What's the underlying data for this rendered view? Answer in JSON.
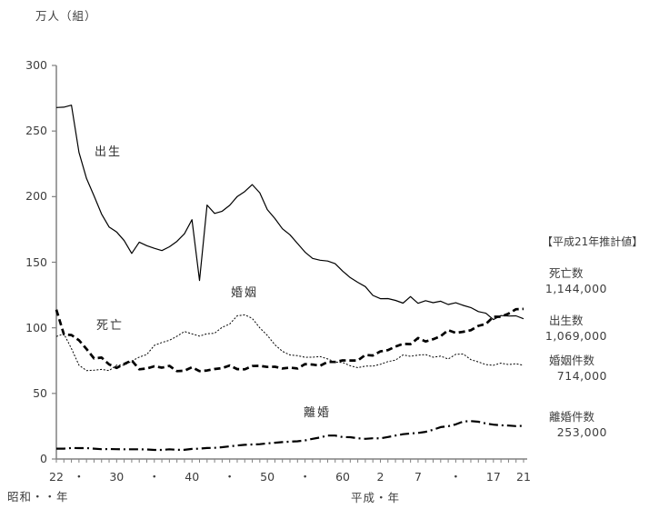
{
  "colors": {
    "background": "#ffffff",
    "line": "#000000",
    "axis": "#808080",
    "text": "#3d3d3d"
  },
  "estimates_panel": {
    "heading": "【平成21年推計値】",
    "items": [
      {
        "label": "死亡数",
        "value": "1,144,000"
      },
      {
        "label": "出生数",
        "value": "1,069,000"
      },
      {
        "label": "婚姻件数",
        "value": "714,000"
      },
      {
        "label": "離婚件数",
        "value": "253,000"
      }
    ]
  },
  "chart_data": {
    "type": "line",
    "title": "",
    "ylabel": "万人（組）",
    "ylim": [
      0,
      300
    ],
    "grid": false,
    "y_ticks": [
      0,
      50,
      100,
      150,
      200,
      250,
      300
    ],
    "x_start": 1947,
    "x_end": 2009,
    "x_unit": "year (Showa 22 = 1947 ... Heisei 21 = 2009)",
    "era_labels": {
      "showa": "昭和・・年",
      "heisei": "平成・年"
    },
    "x_tick_labels": [
      {
        "year": 1947,
        "label": "22"
      },
      {
        "year": 1950,
        "label": "・"
      },
      {
        "year": 1955,
        "label": "30"
      },
      {
        "year": 1960,
        "label": "・"
      },
      {
        "year": 1965,
        "label": "40"
      },
      {
        "year": 1970,
        "label": "・"
      },
      {
        "year": 1975,
        "label": "50"
      },
      {
        "year": 1980,
        "label": "・"
      },
      {
        "year": 1985,
        "label": "60"
      },
      {
        "year": 1990,
        "label": "2"
      },
      {
        "year": 1995,
        "label": "7"
      },
      {
        "year": 2000,
        "label": "・"
      },
      {
        "year": 2005,
        "label": "17"
      },
      {
        "year": 2009,
        "label": "21"
      }
    ],
    "series": [
      {
        "id": "births",
        "name": "出生",
        "style": "solid",
        "values": [
          267.9,
          268.2,
          269.7,
          233.7,
          213.8,
          200.5,
          186.8,
          176.9,
          173.1,
          166.5,
          156.7,
          165.3,
          162.6,
          160.6,
          158.9,
          161.8,
          165.9,
          171.7,
          182.4,
          136.1,
          193.6,
          187.2,
          188.9,
          193.4,
          200.1,
          203.9,
          209.2,
          202.9,
          190.1,
          183.3,
          175.5,
          170.9,
          164.3,
          157.7,
          152.9,
          151.5,
          150.9,
          148.9,
          143.2,
          138.3,
          134.7,
          131.4,
          124.7,
          122.2,
          122.3,
          120.9,
          118.8,
          123.8,
          118.7,
          120.7,
          119.2,
          120.3,
          117.8,
          119.1,
          117.1,
          115.4,
          112.4,
          111.1,
          106.3,
          109.3,
          109.0,
          109.1,
          106.9
        ]
      },
      {
        "id": "deaths",
        "name": "死亡",
        "style": "thick-dashed",
        "values": [
          113.8,
          95.0,
          94.5,
          90.5,
          83.8,
          76.6,
          77.3,
          72.1,
          69.4,
          72.4,
          75.2,
          68.4,
          69.0,
          70.7,
          69.6,
          71.0,
          67.0,
          67.3,
          70.0,
          67.0,
          67.5,
          68.6,
          69.3,
          71.3,
          68.5,
          68.4,
          70.9,
          71.0,
          70.2,
          70.3,
          69.0,
          69.6,
          69.0,
          72.3,
          72.0,
          71.1,
          74.0,
          74.0,
          75.2,
          75.1,
          75.1,
          79.3,
          78.9,
          82.0,
          83.0,
          85.7,
          87.8,
          87.6,
          92.2,
          89.6,
          91.3,
          93.6,
          98.2,
          96.2,
          97.0,
          98.2,
          101.5,
          102.9,
          108.4,
          108.4,
          110.8,
          114.2,
          114.4
        ]
      },
      {
        "id": "marriages",
        "name": "婚姻",
        "style": "dotted",
        "values": [
          93.4,
          95.4,
          84.2,
          71.5,
          67.4,
          67.7,
          68.3,
          67.4,
          71.5,
          71.5,
          74.7,
          77.7,
          79.7,
          86.6,
          88.8,
          90.5,
          93.5,
          97.2,
          95.4,
          93.7,
          95.5,
          95.9,
          100.4,
          102.9,
          109.2,
          109.9,
          107.2,
          100.0,
          94.2,
          87.1,
          82.1,
          79.3,
          78.8,
          77.5,
          77.6,
          78.1,
          76.3,
          73.9,
          73.6,
          71.1,
          69.6,
          70.8,
          70.8,
          72.2,
          74.3,
          75.4,
          79.3,
          78.3,
          79.2,
          79.6,
          77.6,
          78.4,
          76.2,
          79.8,
          80.0,
          75.7,
          74.0,
          72.0,
          71.4,
          73.1,
          72.0,
          72.6,
          71.4
        ]
      },
      {
        "id": "divorces",
        "name": "離婚",
        "style": "dash-dot",
        "values": [
          7.9,
          7.9,
          8.4,
          8.3,
          8.3,
          7.9,
          7.5,
          7.6,
          7.5,
          7.4,
          7.4,
          7.4,
          7.3,
          6.9,
          6.9,
          7.4,
          7.0,
          7.0,
          7.7,
          7.9,
          8.4,
          8.5,
          9.0,
          9.6,
          10.3,
          10.8,
          11.1,
          11.3,
          11.9,
          12.4,
          12.9,
          13.2,
          13.5,
          14.2,
          15.4,
          16.4,
          17.9,
          17.9,
          16.7,
          16.6,
          15.8,
          15.4,
          15.8,
          15.7,
          16.8,
          17.9,
          18.9,
          19.5,
          19.9,
          20.7,
          22.3,
          24.3,
          25.0,
          26.4,
          28.6,
          28.9,
          28.4,
          27.1,
          26.2,
          25.7,
          25.5,
          25.1,
          25.3
        ]
      }
    ]
  }
}
